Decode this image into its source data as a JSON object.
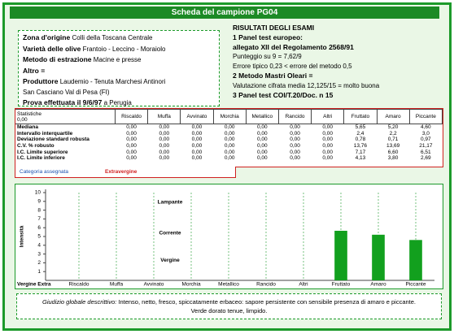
{
  "header": {
    "title": "Scheda del campione PG04"
  },
  "sample": {
    "lines": [
      {
        "label": "Zona d'origine",
        "value": "Colli della Toscana Centrale"
      },
      {
        "label": "Varietà delle olive",
        "value": "Frantoio - Leccino - Moraiolo"
      },
      {
        "label": "Metodo di estrazione",
        "value": "Macine e presse"
      },
      {
        "label": "Altro ="
      },
      {
        "label": "Produttore",
        "value": "Laudemio - Tenuta Marchesi Antinori"
      },
      {
        "value": "San Casciano Val di Pesa (FI)"
      },
      {
        "label": "Prova effettuata il 9/6/97",
        "value": "a Perugia"
      }
    ]
  },
  "results": {
    "lines": [
      "RISULTATI DEGLI ESAMI",
      "1 Panel test europeo:",
      "allegato XII del Regolamento 2568/91",
      "Punteggio su 9 = 7,62/9",
      "Errore tipico 0,23 < errore del metodo 0,5",
      "2 Metodo Mastri Oleari =",
      "Valutazione cifrata media 12,125/15 = molto buona",
      "3 Panel test COI/T.20/Doc. n 15"
    ]
  },
  "table": {
    "corner": [
      "Statistiche",
      "0,00"
    ],
    "columns": [
      "Riscaldo",
      "Muffa",
      "Avvinato",
      "Morchia",
      "Metallico",
      "Rancido",
      "Altri",
      "Fruttato",
      "Amaro",
      "Piccante"
    ],
    "rows": [
      {
        "label": "Mediana",
        "cells": [
          "0,00",
          "0,00",
          "0,00",
          "0,00",
          "0,00",
          "0,00",
          "0,00",
          "5,65",
          "5,20",
          "4,60"
        ]
      },
      {
        "label": "Intervallo interquartile",
        "cells": [
          "0,00",
          "0,00",
          "0,00",
          "0,00",
          "0,00",
          "0,00",
          "0,00",
          "2,4",
          "2,2",
          "3,0"
        ]
      },
      {
        "label": "Deviazione standard robusta",
        "cells": [
          "0,00",
          "0,00",
          "0,00",
          "0,00",
          "0,00",
          "0,00",
          "0,00",
          "0,78",
          "0,71",
          "0,97"
        ]
      },
      {
        "label": "C.V. % robusto",
        "cells": [
          "0,00",
          "0,00",
          "0,00",
          "0,00",
          "0,00",
          "0,00",
          "0,00",
          "13,76",
          "13,69",
          "21,17"
        ]
      },
      {
        "label": "I.C. Limite superiore",
        "cells": [
          "0,00",
          "0,00",
          "0,00",
          "0,00",
          "0,00",
          "0,00",
          "0,00",
          "7,17",
          "6,60",
          "6,51"
        ]
      },
      {
        "label": "I.C. Limite inferiore",
        "cells": [
          "0,00",
          "0,00",
          "0,00",
          "0,00",
          "0,00",
          "0,00",
          "0,00",
          "4,13",
          "3,80",
          "2,69"
        ]
      }
    ]
  },
  "category": {
    "label": "Categoria assegnata",
    "value": "Extravergine"
  },
  "chart_data": {
    "type": "bar",
    "y_label": "Intensità",
    "x_origin_label": "Vergine Extra",
    "categories": [
      "Riscaldo",
      "Muffa",
      "Avvinato",
      "Morchia",
      "Metallico",
      "Rancido",
      "Altri",
      "Fruttato",
      "Amaro",
      "Piccante"
    ],
    "values": [
      0,
      0,
      0,
      0,
      0,
      0,
      0,
      5.65,
      5.2,
      4.6
    ],
    "color": "#12a01e",
    "ylim": [
      0,
      10
    ],
    "yticks": [
      1,
      2,
      3,
      4,
      5,
      6,
      7,
      8,
      9,
      10
    ],
    "annotations": [
      "Lampante",
      "Corrente",
      "Vergine"
    ]
  },
  "judgement": {
    "label": "Giudizio globale descrittivo:",
    "lines": [
      "Intenso, netto, fresco, spiccatamente erbaceo: sapore persistente con sensibile presenza di amaro e piccante.",
      "Verde dorato tenue, limpido."
    ]
  }
}
